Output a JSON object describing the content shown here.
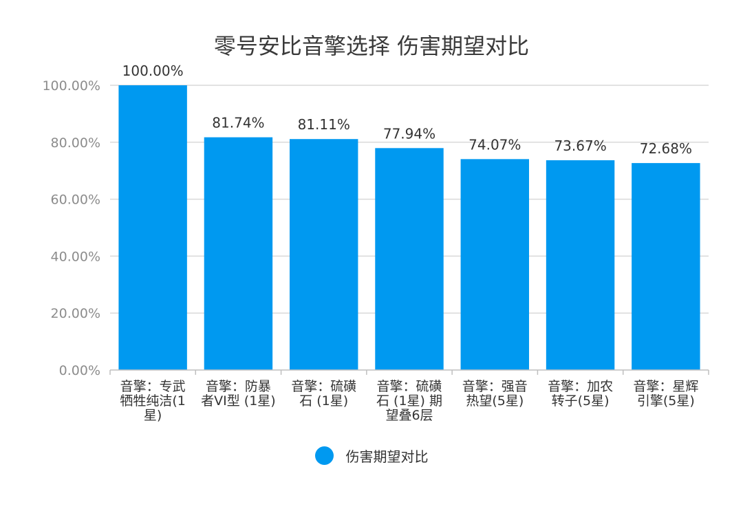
{
  "chart_data": {
    "type": "bar",
    "title": "零号安比音擎选择 伤害期望对比",
    "categories": [
      [
        "音擎：专武",
        "牺牲纯洁(1",
        "星)"
      ],
      [
        "音擎：防暴",
        "者VI型 (1星)"
      ],
      [
        "音擎：硫磺",
        "石 (1星)"
      ],
      [
        "音擎：硫磺",
        "石 (1星) 期",
        "望叠6层"
      ],
      [
        "音擎：强音",
        "热望(5星)"
      ],
      [
        "音擎：加农",
        "转子(5星)"
      ],
      [
        "音擎：星辉",
        "引擎(5星)"
      ]
    ],
    "series": [
      {
        "name": "伤害期望对比",
        "values": [
          100.0,
          81.74,
          81.11,
          77.94,
          74.07,
          73.67,
          72.68
        ],
        "labels": [
          "100.00%",
          "81.74%",
          "81.11%",
          "77.94%",
          "74.07%",
          "73.67%",
          "72.68%"
        ]
      }
    ],
    "y_ticks": [
      "0.00%",
      "20.00%",
      "40.00%",
      "60.00%",
      "80.00%",
      "100.00%"
    ],
    "y_tick_values": [
      0,
      20,
      40,
      60,
      80,
      100
    ],
    "ylim": [
      0,
      100
    ],
    "xlabel": "",
    "ylabel": "",
    "grid": true,
    "legend_position": "bottom"
  },
  "colors": {
    "bar": "#0099f0",
    "grid": "#d9d9d9",
    "axis": "#bfbfbf"
  }
}
